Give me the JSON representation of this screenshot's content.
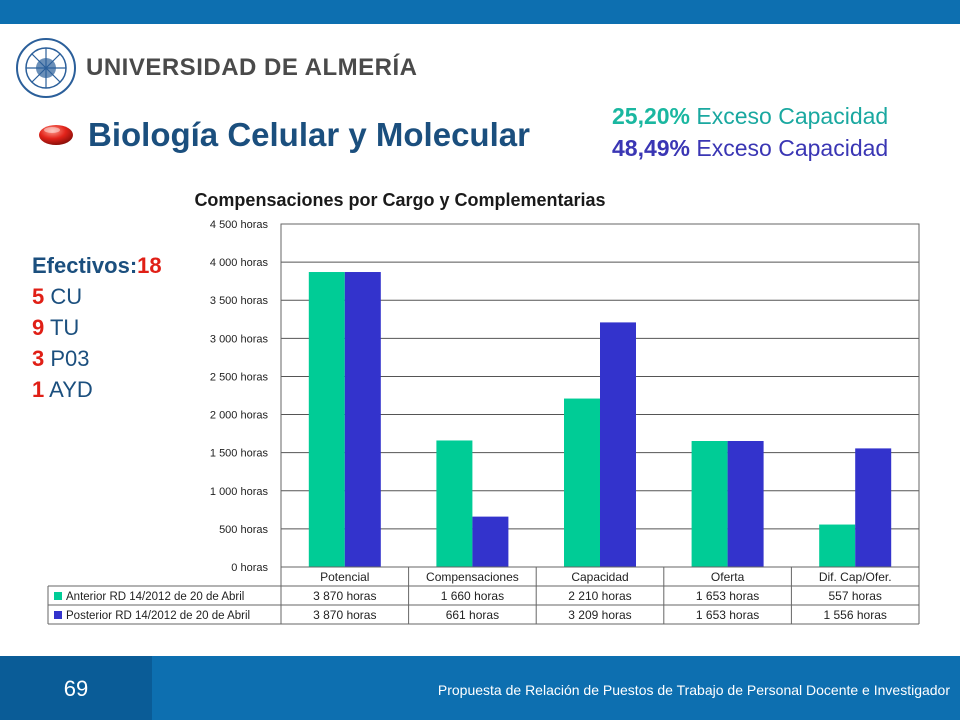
{
  "header": {
    "university": "UNIVERSIDAD DE ALMERÍA",
    "title": "Biología Celular y Molecular",
    "excess": [
      {
        "pct": "25,20%",
        "label": "Exceso Capacidad",
        "color": "#1ab7a0"
      },
      {
        "pct": "48,49%",
        "label": "Exceso Capacidad",
        "color": "#3a36b4"
      }
    ]
  },
  "staff": {
    "lead_label": "Efectivos:",
    "lead_value": "18",
    "items": [
      {
        "count": "5",
        "label": "CU"
      },
      {
        "count": "9",
        "label": "TU"
      },
      {
        "count": "3",
        "label": "P03"
      },
      {
        "count": "1",
        "label": "AYD"
      }
    ]
  },
  "chart_data": {
    "type": "bar",
    "title": "Compensaciones por Cargo y Complementarias",
    "categories": [
      "Potencial",
      "Compensaciones",
      "Capacidad",
      "Oferta",
      "Dif. Cap/Ofer."
    ],
    "series": [
      {
        "name": "Anterior RD 14/2012 de 20 de Abril",
        "color": "#00cc96",
        "values": [
          3870,
          1660,
          2210,
          1653,
          557
        ],
        "labels": [
          "3 870 horas",
          "1 660 horas",
          "2 210 horas",
          "1 653 horas",
          "557 horas"
        ]
      },
      {
        "name": "Posterior RD 14/2012 de 20 de Abril",
        "color": "#3333cc",
        "values": [
          3870,
          661,
          3209,
          1653,
          1556
        ],
        "labels": [
          "3 870 horas",
          "661 horas",
          "3 209 horas",
          "1 653 horas",
          "1 556 horas"
        ]
      }
    ],
    "ylim": [
      0,
      4500
    ],
    "yticks": [
      {
        "value": 0,
        "label": "0 horas"
      },
      {
        "value": 500,
        "label": "500 horas"
      },
      {
        "value": 1000,
        "label": "1 000 horas"
      },
      {
        "value": 1500,
        "label": "1 500 horas"
      },
      {
        "value": 2000,
        "label": "2 000 horas"
      },
      {
        "value": 2500,
        "label": "2 500 horas"
      },
      {
        "value": 3000,
        "label": "3 000 horas"
      },
      {
        "value": 3500,
        "label": "3 500 horas"
      },
      {
        "value": 4000,
        "label": "4 000 horas"
      },
      {
        "value": 4500,
        "label": "4 500 horas"
      }
    ],
    "grid": true,
    "legend": "data-table"
  },
  "footer": {
    "page_number": "69",
    "text": "Propuesta de Relación de Puestos de Trabajo de Personal Docente e Investigador"
  }
}
